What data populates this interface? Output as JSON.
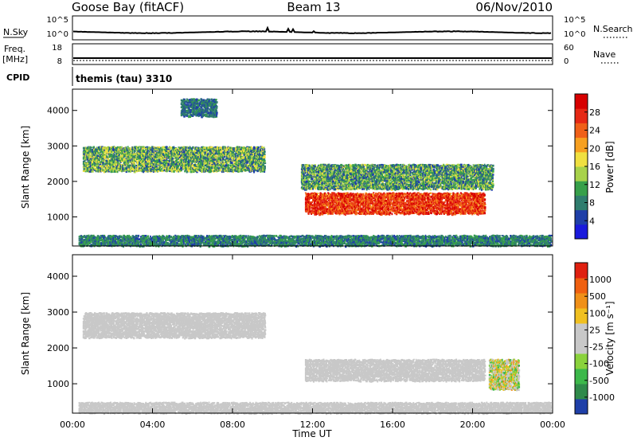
{
  "header": {
    "station": "Goose Bay (fitACF)",
    "beam": "Beam 13",
    "date": "06/Nov/2010"
  },
  "noise_panel": {
    "left_label": "N.Sky",
    "right_label": "N.Search",
    "left_ticks": [
      "10^5",
      "10^0"
    ],
    "right_ticks": [
      "10^5",
      "10^0"
    ]
  },
  "freq_panel": {
    "left_label_top": "Freq.",
    "left_label_unit": "[MHz]",
    "right_label": "Nave",
    "left_ticks": [
      "18",
      "8"
    ],
    "right_ticks": [
      "60",
      "0"
    ]
  },
  "cpid": {
    "label": "CPID",
    "value": "themis (tau) 3310"
  },
  "x_axis": {
    "ticks": [
      "00:00",
      "04:00",
      "08:00",
      "12:00",
      "16:00",
      "20:00",
      "00:00"
    ],
    "label": "Time UT"
  },
  "power_panel": {
    "ylabel": "Slant Range [km]",
    "yticks": [
      "4000",
      "3000",
      "2000",
      "1000"
    ],
    "colorbar_label": "Power [dB]",
    "colorbar_ticks": [
      "28",
      "24",
      "20",
      "16",
      "12",
      "8",
      "4"
    ],
    "colors": [
      "#1a1adc",
      "#1f3fa8",
      "#2f7d6e",
      "#37a04a",
      "#a8d24a",
      "#f0e040",
      "#f7a020",
      "#f06018",
      "#e62814",
      "#d70000"
    ]
  },
  "velocity_panel": {
    "ylabel": "Slant Range [km]",
    "yticks": [
      "4000",
      "3000",
      "2000",
      "1000"
    ],
    "colorbar_label": "Velocity [m s⁻¹]",
    "colorbar_ticks": [
      "1000",
      "500",
      "100",
      "25",
      "-25",
      "-100",
      "-500",
      "-1000"
    ],
    "colors": [
      "#1f3fa8",
      "#2f8a4a",
      "#3cb84a",
      "#8ad23c",
      "#c8c8c8",
      "#c8c8c8",
      "#f0c020",
      "#f09018",
      "#f06010",
      "#e02010"
    ]
  },
  "chart_data": {
    "type": "heatmap",
    "x_range_hours": [
      0,
      24
    ],
    "y_range_km": [
      180,
      4600
    ],
    "power_scale_db": [
      0,
      30
    ],
    "velocity_scale_ms": [
      -1000,
      1000
    ],
    "power_features": [
      {
        "name": "upper-band",
        "t_start": 0.5,
        "t_end": 9.6,
        "range_km": [
          2300,
          3000
        ],
        "power_db": [
          4,
          18
        ]
      },
      {
        "name": "high-patch",
        "t_start": 5.4,
        "t_end": 7.2,
        "range_km": [
          3850,
          4350
        ],
        "power_db": [
          4,
          10
        ]
      },
      {
        "name": "main-echo",
        "t_start": 11.6,
        "t_end": 20.6,
        "range_km": [
          1100,
          1700
        ],
        "power_db": [
          20,
          30
        ]
      },
      {
        "name": "mid-band",
        "t_start": 11.4,
        "t_end": 21.0,
        "range_km": [
          1800,
          2500
        ],
        "power_db": [
          4,
          16
        ]
      },
      {
        "name": "near-range",
        "t_start": 0.3,
        "t_end": 23.9,
        "range_km": [
          200,
          500
        ],
        "power_db": [
          4,
          12
        ]
      }
    ],
    "velocity_features": [
      {
        "name": "upper-band",
        "t_start": 0.5,
        "t_end": 9.6,
        "range_km": [
          2300,
          3000
        ],
        "velocity_ms": [
          -25,
          25
        ]
      },
      {
        "name": "main-echo",
        "t_start": 11.6,
        "t_end": 20.6,
        "range_km": [
          1100,
          1700
        ],
        "velocity_ms": [
          -25,
          25
        ]
      },
      {
        "name": "late-patch",
        "t_start": 20.8,
        "t_end": 22.3,
        "range_km": [
          850,
          1700
        ],
        "velocity_ms": [
          -500,
          500
        ]
      },
      {
        "name": "near-range",
        "t_start": 0.3,
        "t_end": 23.9,
        "range_km": [
          200,
          500
        ],
        "velocity_ms": [
          -100,
          100
        ]
      }
    ]
  }
}
